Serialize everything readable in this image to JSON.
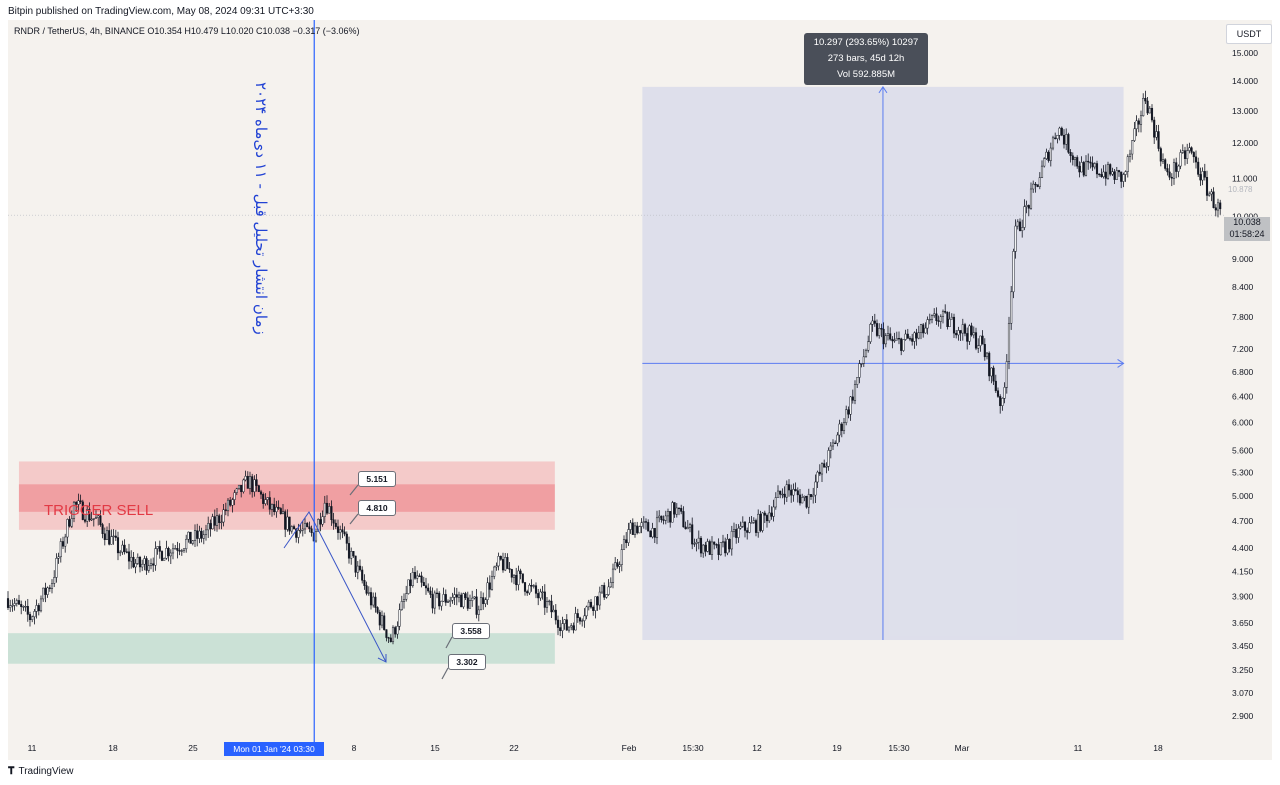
{
  "header": {
    "published": "Bitpin published on TradingView.com, May 08, 2024 09:31 UTC+3:30",
    "ohlc": "RNDR / TetherUS, 4h, BINANCE  O10.354  H10.479  L10.020  C10.038  −0.317 (−3.06%)",
    "currency_button": "USDT"
  },
  "annotations": {
    "persian_note": "زمان انتشار تحلیل قبل - ۱۱ دی‌ماه ۲۰۲۴",
    "trigger_label": "TRIGGER SELL",
    "callouts": [
      "5.151",
      "4.810",
      "3.558",
      "3.302"
    ],
    "measure_tooltip": {
      "line1": "10.297 (293.65%) 10297",
      "line2": "273 bars, 45d 12h",
      "line3": "Vol 592.885M"
    },
    "last_price": "10.038",
    "countdown": "01:58:24",
    "current_price_ghost": "10.878",
    "date_badge": "Mon 01 Jan '24   03:30"
  },
  "footer": {
    "brand": "TradingView"
  },
  "colors": {
    "background": "#f5f2ee",
    "candle": "#131722",
    "sell_zone": "#f4b6b8",
    "support_zone": "#b9dfd3",
    "measure_box": "#dfe3f5",
    "accent_blue": "#2962ff"
  },
  "chart_data": {
    "type": "candlestick",
    "symbol": "RNDR / TetherUS",
    "interval": "4h",
    "y_scale": "log",
    "ylim": [
      2.8,
      15.5
    ],
    "y_ticks": [
      "15.000",
      "14.000",
      "13.000",
      "12.000",
      "11.000",
      "10.000",
      "9.000",
      "8.400",
      "7.800",
      "7.200",
      "6.800",
      "6.400",
      "6.000",
      "5.600",
      "5.300",
      "5.000",
      "4.700",
      "4.400",
      "4.150",
      "3.900",
      "3.650",
      "3.450",
      "3.250",
      "3.070",
      "2.900"
    ],
    "x_ticks": [
      "11",
      "18",
      "25",
      "8",
      "15",
      "22",
      "Feb",
      "15:30",
      "12",
      "19",
      "15:30",
      "Mar",
      "11",
      "18"
    ],
    "price_path": [
      {
        "x": "Dec 04",
        "y": 3.88
      },
      {
        "x": "Dec 06",
        "y": 3.7
      },
      {
        "x": "Dec 08",
        "y": 4.05
      },
      {
        "x": "Dec 10",
        "y": 4.9
      },
      {
        "x": "Dec 12",
        "y": 4.72
      },
      {
        "x": "Dec 14",
        "y": 4.4
      },
      {
        "x": "Dec 16",
        "y": 4.2
      },
      {
        "x": "Dec 18",
        "y": 4.35
      },
      {
        "x": "Dec 20",
        "y": 4.45
      },
      {
        "x": "Dec 22",
        "y": 4.55
      },
      {
        "x": "Dec 24",
        "y": 4.85
      },
      {
        "x": "Dec 26",
        "y": 5.2
      },
      {
        "x": "Dec 28",
        "y": 4.85
      },
      {
        "x": "Dec 30",
        "y": 4.62
      },
      {
        "x": "Jan 01",
        "y": 4.55
      },
      {
        "x": "Jan 02",
        "y": 4.95
      },
      {
        "x": "Jan 04",
        "y": 4.4
      },
      {
        "x": "Jan 06",
        "y": 3.9
      },
      {
        "x": "Jan 08",
        "y": 3.5
      },
      {
        "x": "Jan 10",
        "y": 4.1
      },
      {
        "x": "Jan 12",
        "y": 3.85
      },
      {
        "x": "Jan 14",
        "y": 3.9
      },
      {
        "x": "Jan 16",
        "y": 3.8
      },
      {
        "x": "Jan 18",
        "y": 4.25
      },
      {
        "x": "Jan 20",
        "y": 4.05
      },
      {
        "x": "Jan 22",
        "y": 3.85
      },
      {
        "x": "Jan 24",
        "y": 3.6
      },
      {
        "x": "Jan 26",
        "y": 3.8
      },
      {
        "x": "Jan 28",
        "y": 4.0
      },
      {
        "x": "Jan 30",
        "y": 4.65
      },
      {
        "x": "Feb 01",
        "y": 4.6
      },
      {
        "x": "Feb 03",
        "y": 4.85
      },
      {
        "x": "Feb 05",
        "y": 4.45
      },
      {
        "x": "Feb 07",
        "y": 4.35
      },
      {
        "x": "Feb 09",
        "y": 4.6
      },
      {
        "x": "Feb 11",
        "y": 4.7
      },
      {
        "x": "Feb 13",
        "y": 5.1
      },
      {
        "x": "Feb 15",
        "y": 4.95
      },
      {
        "x": "Feb 17",
        "y": 5.5
      },
      {
        "x": "Feb 19",
        "y": 6.3
      },
      {
        "x": "Feb 21",
        "y": 7.6
      },
      {
        "x": "Feb 23",
        "y": 7.3
      },
      {
        "x": "Feb 25",
        "y": 7.4
      },
      {
        "x": "Feb 27",
        "y": 7.8
      },
      {
        "x": "Feb 29",
        "y": 7.6
      },
      {
        "x": "Mar 02",
        "y": 7.3
      },
      {
        "x": "Mar 04",
        "y": 6.2
      },
      {
        "x": "Mar 05",
        "y": 9.5
      },
      {
        "x": "Mar 07",
        "y": 10.8
      },
      {
        "x": "Mar 09",
        "y": 12.5
      },
      {
        "x": "Mar 11",
        "y": 11.3
      },
      {
        "x": "Mar 13",
        "y": 11.2
      },
      {
        "x": "Mar 15",
        "y": 11.0
      },
      {
        "x": "Mar 17",
        "y": 13.5
      },
      {
        "x": "Mar 19",
        "y": 11.0
      },
      {
        "x": "Mar 21",
        "y": 11.8
      },
      {
        "x": "Mar 23",
        "y": 10.5
      },
      {
        "x": "Mar 24",
        "y": 10.04
      }
    ],
    "zones": [
      {
        "name": "sell-zone-outer",
        "y_from": 4.6,
        "y_to": 5.45,
        "x_from": "Dec 05",
        "x_to": "Jan 23"
      },
      {
        "name": "sell-zone-inner",
        "y_from": 4.81,
        "y_to": 5.15,
        "x_from": "Dec 05",
        "x_to": "Jan 23"
      },
      {
        "name": "support-zone",
        "y_from": 3.3,
        "y_to": 3.56,
        "x_from": "Dec 04",
        "x_to": "Jan 23"
      }
    ],
    "measure": {
      "x_from": "Jan 31",
      "x_to": "Mar 15",
      "y_from": 3.5,
      "y_to": 13.8
    },
    "vertical_marker": "Jan 01"
  }
}
